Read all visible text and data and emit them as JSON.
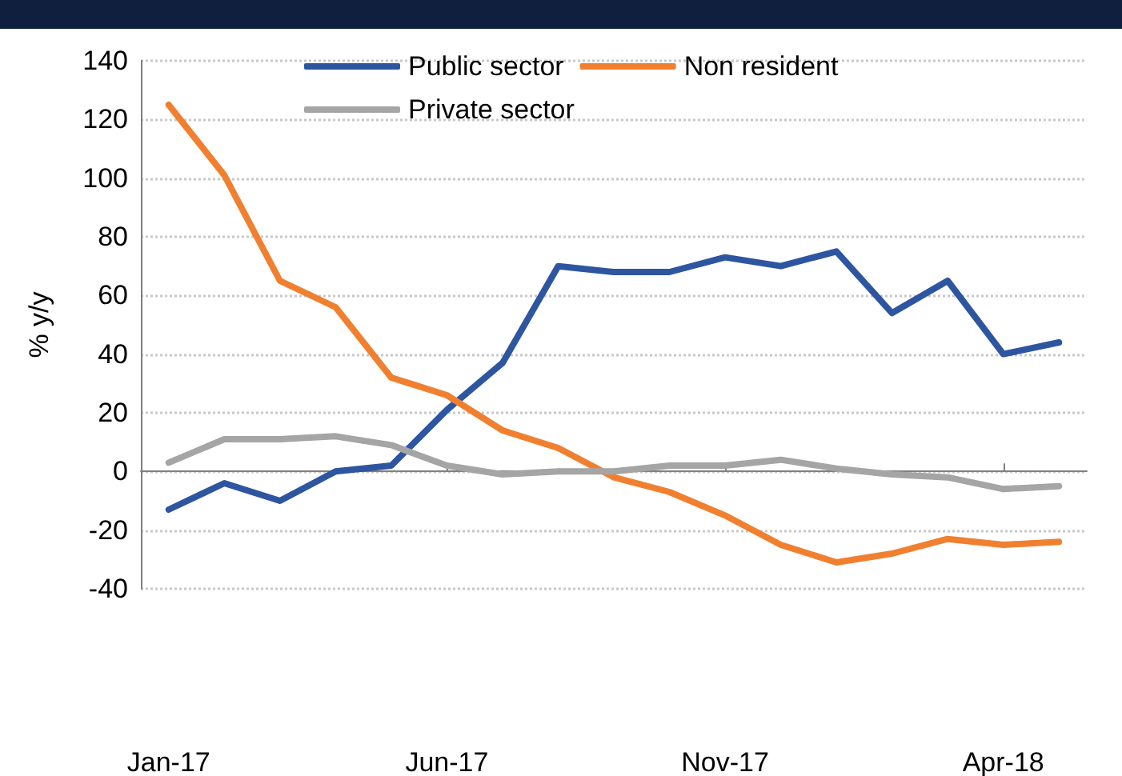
{
  "chart_data": {
    "type": "line",
    "ylabel": "% y/y",
    "categories": [
      "Jan-17",
      null,
      null,
      null,
      null,
      "Jun-17",
      null,
      null,
      null,
      null,
      "Nov-17",
      null,
      null,
      null,
      null,
      "Apr-18",
      null
    ],
    "series": [
      {
        "name": "Public sector",
        "color": "#2e55a0",
        "values": [
          -13,
          -4,
          -10,
          0,
          2,
          21,
          37,
          70,
          68,
          68,
          73,
          70,
          75,
          54,
          65,
          40,
          44
        ]
      },
      {
        "name": "Non resident",
        "color": "#f08030",
        "values": [
          125,
          101,
          65,
          56,
          32,
          26,
          14,
          8,
          -2,
          -7,
          -15,
          -25,
          -31,
          -28,
          -23,
          -25,
          -24
        ]
      },
      {
        "name": "Private sector",
        "color": "#a5a5a5",
        "values": [
          3,
          11,
          11,
          12,
          9,
          2,
          -1,
          0,
          0,
          2,
          2,
          4,
          1,
          -1,
          -2,
          -6,
          -5
        ]
      }
    ],
    "ylim": [
      -40,
      140
    ],
    "yticks": [
      -40,
      -20,
      0,
      20,
      40,
      60,
      80,
      100,
      120,
      140
    ],
    "grid": "y",
    "legend": "top",
    "marker": "none",
    "line_style": "solid"
  }
}
